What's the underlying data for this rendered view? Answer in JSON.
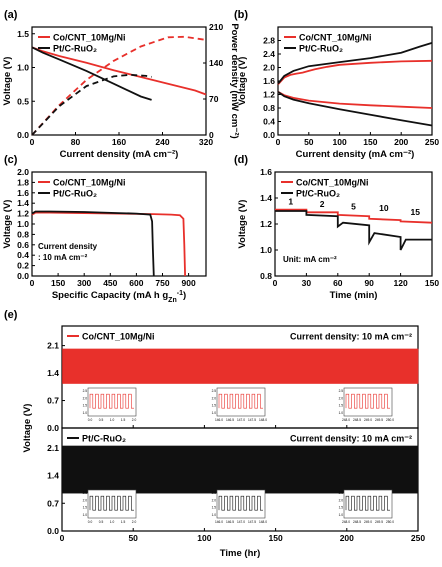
{
  "colors": {
    "red": "#e8302b",
    "black": "#111111"
  },
  "chart_data": [
    {
      "panel": "(a)",
      "type": "line",
      "xlabel": "Current density (mA cm⁻²)",
      "ylabel": "Voltage (V)",
      "y2label": "Power density (mW cm⁻²)",
      "xlim": [
        0,
        320
      ],
      "ylim": [
        0,
        1.6
      ],
      "y2lim": [
        0,
        210
      ],
      "xticks": [
        "0",
        "80",
        "160",
        "240",
        "320"
      ],
      "yticks": [
        "0.0",
        "0.5",
        "1.0",
        "1.5"
      ],
      "y2ticks": [
        "0",
        "70",
        "140",
        "210"
      ],
      "legend": [
        "Co/CNT_10Mg/Ni",
        "Pt/C-RuO₂"
      ],
      "series": [
        {
          "name": "Co/CNT_10Mg/Ni",
          "color": "red",
          "axis": "left",
          "style": "solid",
          "x": [
            0,
            20,
            50,
            100,
            150,
            200,
            250,
            300,
            320
          ],
          "y": [
            1.3,
            1.24,
            1.17,
            1.07,
            0.96,
            0.86,
            0.76,
            0.66,
            0.6
          ]
        },
        {
          "name": "Co/CNT_10Mg/Ni",
          "color": "red",
          "axis": "right",
          "style": "dash",
          "x": [
            0,
            50,
            100,
            150,
            200,
            250,
            280,
            300,
            320
          ],
          "y": [
            0,
            58,
            107,
            144,
            172,
            190,
            191,
            188,
            185
          ]
        },
        {
          "name": "Pt/C-RuO₂",
          "color": "black",
          "axis": "left",
          "style": "solid",
          "x": [
            0,
            20,
            50,
            100,
            150,
            200,
            220
          ],
          "y": [
            1.3,
            1.22,
            1.12,
            0.95,
            0.76,
            0.57,
            0.52
          ]
        },
        {
          "name": "Pt/C-RuO₂",
          "color": "black",
          "axis": "right",
          "style": "dash",
          "x": [
            0,
            50,
            100,
            150,
            180,
            210,
            220
          ],
          "y": [
            0,
            56,
            95,
            114,
            117,
            115,
            113
          ]
        }
      ]
    },
    {
      "panel": "(b)",
      "type": "line",
      "xlabel": "Current density (mA cm⁻²)",
      "ylabel": "Voltage (V)",
      "xlim": [
        0,
        250
      ],
      "ylim": [
        0,
        3.2
      ],
      "xticks": [
        "0",
        "50",
        "100",
        "150",
        "200",
        "250"
      ],
      "yticks": [
        "0.0",
        "0.4",
        "0.8",
        "1.2",
        "1.6",
        "2.0",
        "2.4",
        "2.8"
      ],
      "legend": [
        "Co/CNT_10Mg/Ni",
        "Pt/C-RuO₂"
      ],
      "series": [
        {
          "name": "Co/CNT_10Mg/Ni",
          "color": "red",
          "x": [
            0,
            10,
            20,
            30,
            40,
            50,
            60,
            80,
            100,
            150,
            200,
            250
          ],
          "y": [
            1.5,
            1.7,
            1.78,
            1.82,
            1.85,
            1.9,
            1.95,
            2.02,
            2.08,
            2.14,
            2.18,
            2.2
          ]
        },
        {
          "name": "Co/CNT_10Mg/Ni",
          "color": "red",
          "x": [
            0,
            10,
            25,
            50,
            100,
            150,
            200,
            250
          ],
          "y": [
            1.28,
            1.18,
            1.1,
            1.02,
            0.93,
            0.88,
            0.84,
            0.8
          ]
        },
        {
          "name": "Pt/C-RuO₂",
          "color": "black",
          "x": [
            0,
            10,
            25,
            50,
            100,
            150,
            200,
            230,
            250
          ],
          "y": [
            1.52,
            1.75,
            1.9,
            2.04,
            2.16,
            2.28,
            2.44,
            2.62,
            2.73
          ]
        },
        {
          "name": "Pt/C-RuO₂",
          "color": "black",
          "x": [
            0,
            10,
            25,
            50,
            100,
            150,
            200,
            250
          ],
          "y": [
            1.28,
            1.15,
            1.05,
            0.94,
            0.76,
            0.6,
            0.44,
            0.28
          ]
        }
      ]
    },
    {
      "panel": "(c)",
      "type": "line",
      "xlabel": "Specific Capacity (mA h g",
      "xlabel_sub": "Zn",
      "xlabel_sup": "-1",
      "xlabel_end": ")",
      "ylabel": "Voltage (V)",
      "xlim": [
        0,
        1000
      ],
      "ylim": [
        0,
        2.0
      ],
      "xticks": [
        "0",
        "150",
        "300",
        "450",
        "600",
        "750",
        "900"
      ],
      "yticks": [
        "0.0",
        "0.2",
        "0.4",
        "0.6",
        "0.8",
        "1.0",
        "1.2",
        "1.4",
        "1.6",
        "1.8",
        "2.0"
      ],
      "legend": [
        "Co/CNT_10Mg/Ni",
        "Pt/C-RuO₂"
      ],
      "annotation": [
        "Current density",
        ": 10 mA cm⁻²"
      ],
      "series": [
        {
          "name": "Co/CNT_10Mg/Ni",
          "color": "red",
          "x": [
            0,
            20,
            100,
            300,
            500,
            700,
            800,
            850,
            870,
            875,
            880
          ],
          "y": [
            1.18,
            1.22,
            1.22,
            1.21,
            1.2,
            1.19,
            1.18,
            1.17,
            1.1,
            0.6,
            0.0
          ]
        },
        {
          "name": "Pt/C-RuO₂",
          "color": "black",
          "x": [
            0,
            20,
            100,
            300,
            500,
            600,
            680,
            690,
            695,
            700
          ],
          "y": [
            1.2,
            1.24,
            1.24,
            1.23,
            1.21,
            1.2,
            1.18,
            1.05,
            0.5,
            0.0
          ]
        }
      ]
    },
    {
      "panel": "(d)",
      "type": "line",
      "xlabel": "Time (min)",
      "ylabel": "Voltage (V)",
      "xlim": [
        0,
        150
      ],
      "ylim": [
        0.8,
        1.6
      ],
      "xticks": [
        "0",
        "30",
        "60",
        "90",
        "120",
        "150"
      ],
      "yticks": [
        "0.8",
        "1.0",
        "1.2",
        "1.4",
        "1.6"
      ],
      "legend": [
        "Co/CNT_10Mg/Ni",
        "Pt/C-RuO₂"
      ],
      "step_labels": [
        "1",
        "2",
        "5",
        "10",
        "15"
      ],
      "unit_label": "Unit: mA cm⁻²",
      "series": [
        {
          "name": "Co/CNT_10Mg/Ni",
          "color": "red",
          "x": [
            0,
            30,
            30.01,
            60,
            60.01,
            90,
            90.01,
            120,
            120.01,
            150
          ],
          "y": [
            1.31,
            1.31,
            1.29,
            1.29,
            1.27,
            1.26,
            1.24,
            1.23,
            1.22,
            1.21
          ]
        },
        {
          "name": "Pt/C-RuO₂",
          "color": "black",
          "x": [
            0,
            30,
            30.01,
            60,
            60.01,
            65,
            90,
            90.01,
            95,
            120,
            120.01,
            125,
            150
          ],
          "y": [
            1.3,
            1.3,
            1.27,
            1.26,
            1.18,
            1.21,
            1.19,
            1.06,
            1.13,
            1.1,
            1.0,
            1.08,
            1.08
          ]
        }
      ]
    },
    {
      "panel": "(e)",
      "type": "line",
      "xlabel": "Time (hr)",
      "ylabel": "Voltage (V)",
      "xlim": [
        0,
        250
      ],
      "xticks": [
        "0",
        "50",
        "100",
        "150",
        "200",
        "250"
      ],
      "yticks": [
        "0.0",
        "0.7",
        "1.4",
        "2.1"
      ],
      "subplots": [
        {
          "name": "Co/CNT_10Mg/Ni",
          "color": "red",
          "label": "Current density: 10 mA cm⁻²",
          "ylim": [
            0,
            2.6
          ],
          "charge_v": 2.02,
          "discharge_v": 1.13,
          "insets": [
            {
              "xticks": [
                "0.0",
                "0.5",
                "1.0",
                "1.5",
                "2.0"
              ],
              "yticks": [
                "2.5",
                "2.0",
                "1.5",
                "1.0"
              ]
            },
            {
              "xticks": [
                "146.0",
                "146.5",
                "147.0",
                "147.5",
                "148.0"
              ],
              "yticks": [
                "2.5",
                "2.0",
                "1.5",
                "1.0"
              ]
            },
            {
              "xticks": [
                "248.0",
                "248.5",
                "249.0",
                "249.5",
                "250.0"
              ],
              "yticks": [
                "2.5",
                "2.0",
                "1.5",
                "1.0"
              ]
            }
          ]
        },
        {
          "name": "Pt/C-RuO₂",
          "color": "black",
          "label": "Current density: 10 mA cm⁻²",
          "ylim": [
            0,
            2.6
          ],
          "charge_v": 2.15,
          "discharge_v": 0.95,
          "insets": [
            {
              "xticks": [
                "0.0",
                "0.5",
                "1.0",
                "1.5",
                "2.0"
              ],
              "yticks": [
                "2.5",
                "2.0",
                "1.5",
                "1.0"
              ]
            },
            {
              "xticks": [
                "146.0",
                "146.5",
                "147.0",
                "147.5",
                "148.0"
              ],
              "yticks": [
                "2.5",
                "2.0",
                "1.5",
                "1.0"
              ]
            },
            {
              "xticks": [
                "248.0",
                "248.5",
                "249.0",
                "249.5",
                "250.0"
              ],
              "yticks": [
                "2.5",
                "2.0",
                "1.5",
                "1.0"
              ]
            }
          ]
        }
      ]
    }
  ]
}
